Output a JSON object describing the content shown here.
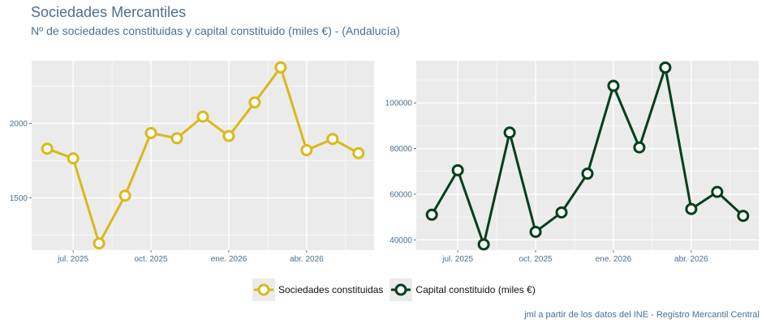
{
  "header": {
    "title": "Sociedades Mercantiles",
    "subtitle": "Nº de sociedades constituidas y capital constituido (miles €) - (Andalucía)"
  },
  "caption": "jml a partir de los datos del INE - Registro Mercantil Central",
  "colors": {
    "panel_bg": "#ebebeb",
    "grid": "#ffffff",
    "series1": "#d9b91c",
    "series2": "#023f1c",
    "text": "#4a6f91"
  },
  "chart_data": [
    {
      "type": "line",
      "x": [
        "2025-06",
        "2025-07",
        "2025-08",
        "2025-09",
        "2025-10",
        "2025-11",
        "2025-12",
        "2026-01",
        "2026-02",
        "2026-03",
        "2026-04",
        "2026-05",
        "2026-06"
      ],
      "series": [
        {
          "name": "Sociedades constituidas",
          "values": [
            1830,
            1765,
            1195,
            1515,
            1935,
            1900,
            2045,
            1915,
            2140,
            2375,
            1820,
            1895,
            1800
          ]
        }
      ],
      "x_ticks": [
        "jul. 2025",
        "oct. 2025",
        "ene. 2026",
        "abr. 2026"
      ],
      "y_ticks": [
        "1500",
        "2000"
      ],
      "grid": true
    },
    {
      "type": "line",
      "x": [
        "2025-06",
        "2025-07",
        "2025-08",
        "2025-09",
        "2025-10",
        "2025-11",
        "2025-12",
        "2026-01",
        "2026-02",
        "2026-03",
        "2026-04",
        "2026-05",
        "2026-06"
      ],
      "series": [
        {
          "name": "Capital constituido (miles €)",
          "values": [
            51000,
            70500,
            38000,
            87000,
            43500,
            52000,
            69000,
            107500,
            80500,
            115500,
            53500,
            61000,
            50500
          ]
        }
      ],
      "x_ticks": [
        "jul. 2025",
        "oct. 2025",
        "ene. 2026",
        "abr. 2026"
      ],
      "y_ticks": [
        "40000",
        "60000",
        "80000",
        "100000"
      ],
      "grid": true
    }
  ],
  "legend": {
    "items": [
      "Sociedades constituidas",
      "Capital constituido (miles €)"
    ],
    "position": "bottom"
  }
}
